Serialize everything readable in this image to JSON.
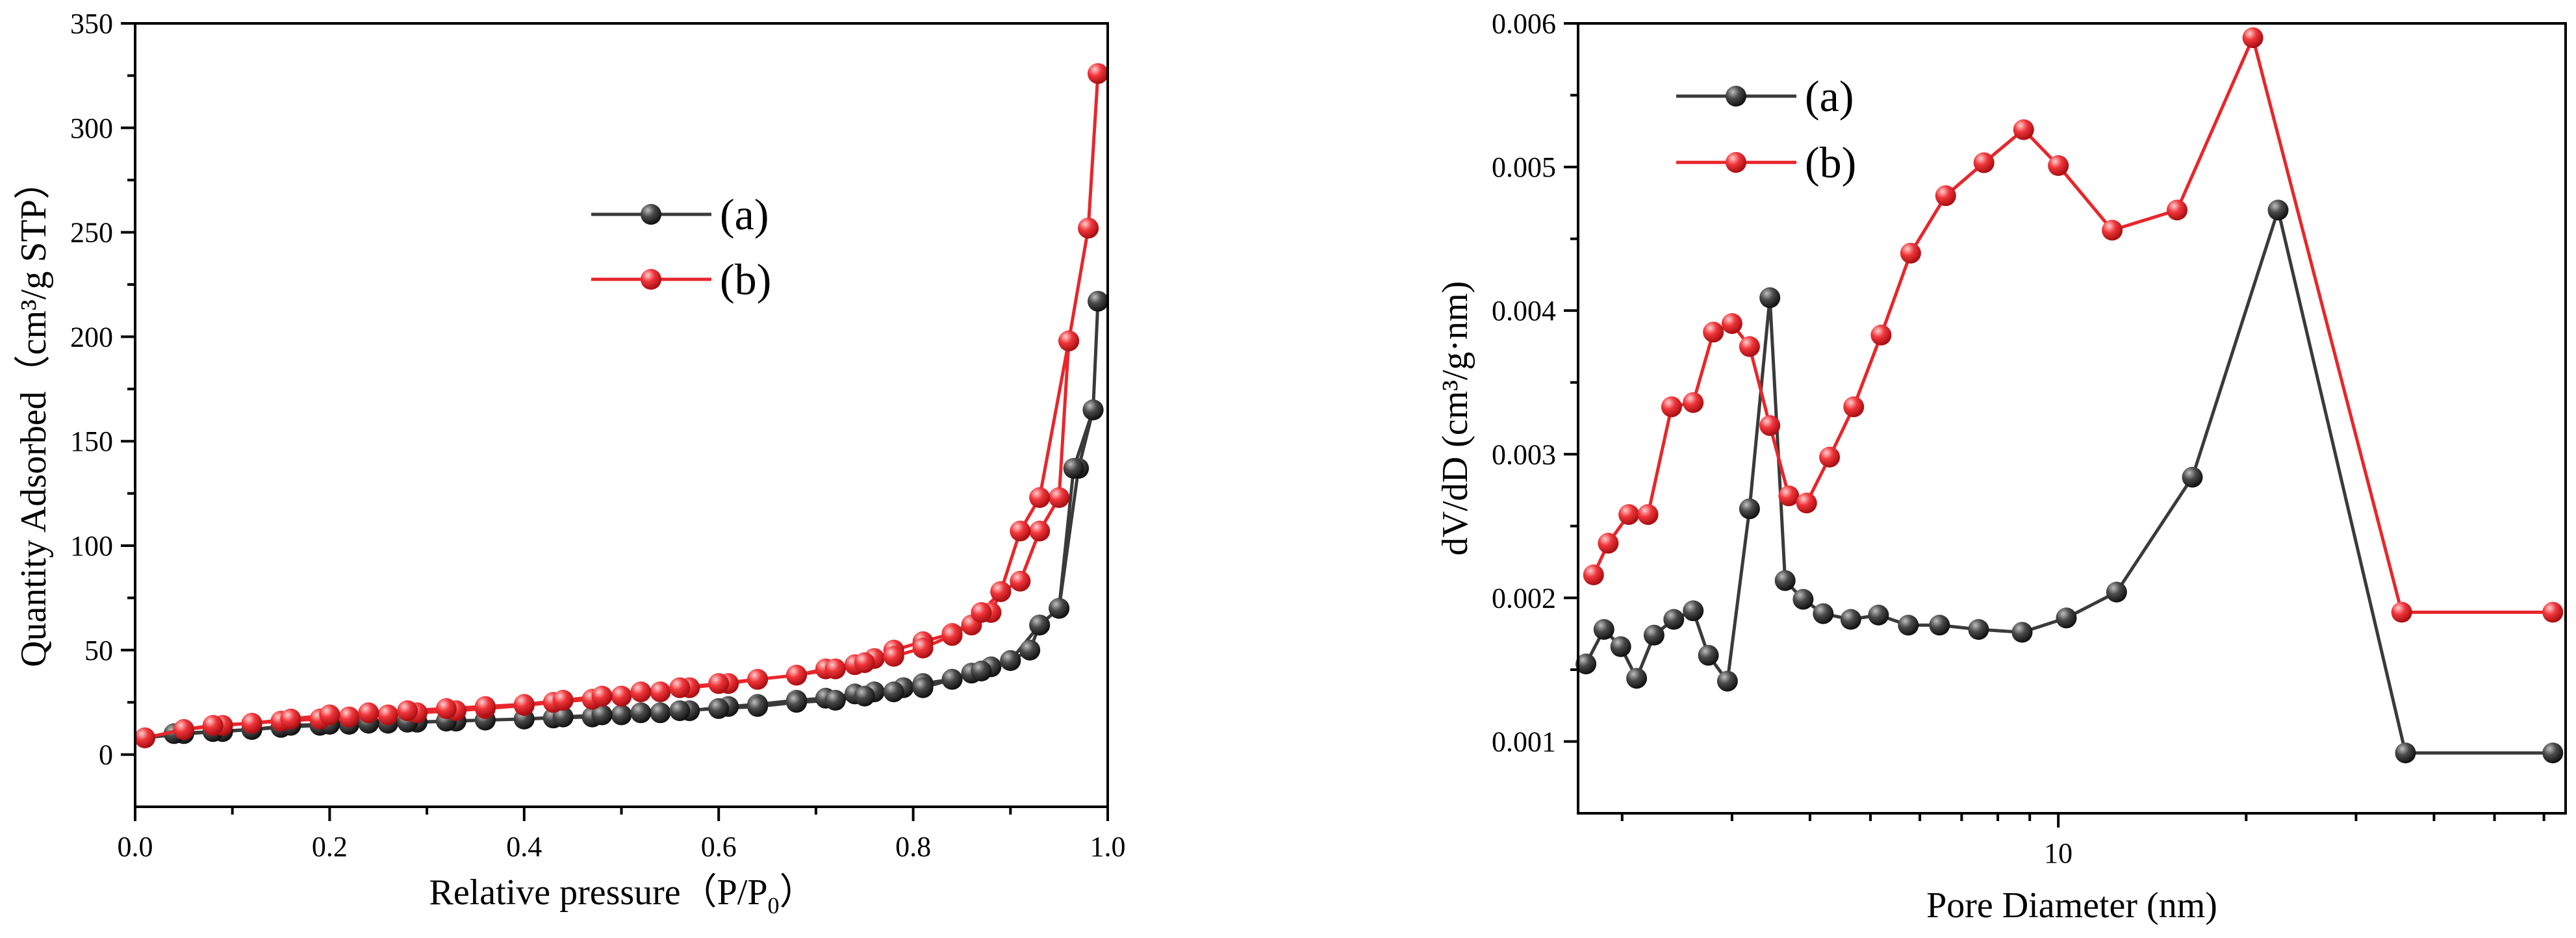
{
  "colors": {
    "series_a": "#3a3a3a",
    "series_b": "#e8262b",
    "axis": "#000000"
  },
  "chart_data": [
    {
      "type": "line",
      "title": "",
      "xlabel": "Relative pressure（P/P",
      "xlabel_sub": "0",
      "xlabel_end": "）",
      "ylabel": "Quantity Adsorbed（cm³/g STP）",
      "xlim": [
        0,
        1.0
      ],
      "ylim": [
        -25,
        350
      ],
      "xticks": [
        0.0,
        0.2,
        0.4,
        0.6,
        0.8,
        1.0
      ],
      "xtick_labels": [
        "0.0",
        "0.2",
        "0.4",
        "0.6",
        "0.8",
        "1.0"
      ],
      "yticks": [
        0,
        50,
        100,
        150,
        200,
        250,
        300,
        350
      ],
      "ytick_labels": [
        "0",
        "50",
        "100",
        "150",
        "200",
        "250",
        "300",
        "350"
      ],
      "series": [
        {
          "name": "(a)",
          "x": [
            0.01,
            0.05,
            0.09,
            0.12,
            0.15,
            0.19,
            0.22,
            0.26,
            0.29,
            0.33,
            0.36,
            0.4,
            0.43,
            0.47,
            0.5,
            0.54,
            0.57,
            0.61,
            0.64,
            0.68,
            0.71,
            0.74,
            0.76,
            0.79,
            0.81,
            0.84,
            0.86,
            0.88,
            0.9,
            0.92,
            0.93,
            0.95,
            0.97,
            0.985,
            0.99,
            0.985,
            0.965,
            0.95,
            0.93,
            0.9,
            0.87,
            0.84,
            0.81,
            0.78,
            0.75,
            0.72,
            0.68,
            0.64,
            0.6,
            0.56,
            0.52,
            0.48,
            0.44,
            0.4,
            0.36,
            0.32,
            0.28,
            0.24,
            0.2,
            0.16,
            0.12,
            0.08,
            0.04
          ],
          "values": [
            8,
            10,
            11,
            12,
            13,
            14,
            14.5,
            15,
            15.5,
            16,
            16.5,
            17,
            17.5,
            18,
            19,
            20,
            21,
            23,
            24,
            26,
            27,
            29,
            30,
            32,
            34,
            36,
            39,
            42,
            45,
            50,
            62,
            70,
            137,
            165,
            217,
            165,
            137,
            70,
            62,
            45,
            40,
            36,
            32,
            30,
            28,
            26,
            25,
            23,
            22,
            21,
            20,
            19,
            18,
            17,
            16.5,
            16,
            15.5,
            15,
            14.5,
            14,
            12,
            11,
            10
          ]
        },
        {
          "name": "(b)",
          "x": [
            0.01,
            0.05,
            0.09,
            0.12,
            0.15,
            0.19,
            0.22,
            0.26,
            0.29,
            0.33,
            0.36,
            0.4,
            0.43,
            0.47,
            0.5,
            0.54,
            0.57,
            0.61,
            0.64,
            0.68,
            0.71,
            0.74,
            0.76,
            0.78,
            0.81,
            0.84,
            0.86,
            0.88,
            0.89,
            0.91,
            0.93,
            0.95,
            0.96,
            0.98,
            0.99,
            0.98,
            0.96,
            0.93,
            0.91,
            0.89,
            0.87,
            0.84,
            0.81,
            0.78,
            0.75,
            0.72,
            0.68,
            0.64,
            0.6,
            0.56,
            0.52,
            0.48,
            0.44,
            0.4,
            0.36,
            0.32,
            0.28,
            0.24,
            0.2,
            0.16,
            0.12,
            0.08,
            0.05
          ],
          "values": [
            8,
            12,
            14,
            15,
            16,
            17,
            18,
            19,
            20,
            21,
            22,
            23.5,
            25,
            26.5,
            28,
            30,
            32,
            34,
            36,
            38,
            41,
            43,
            46,
            50,
            54,
            58,
            62,
            68,
            78,
            83,
            107,
            123,
            198,
            252,
            326,
            252,
            198,
            123,
            107,
            78,
            68,
            57,
            51,
            47,
            44,
            41,
            38,
            36,
            34,
            32,
            30,
            28,
            26,
            24,
            23,
            22,
            21,
            20,
            19,
            17,
            15,
            14,
            12
          ]
        }
      ],
      "legend": {
        "placement": "upper-middle",
        "entries": [
          "(a)",
          "(b)"
        ]
      }
    },
    {
      "type": "line",
      "title": "",
      "xlabel": "Pore Diameter (nm)",
      "ylabel": "dV/dD (cm³/g·nm)",
      "xscale": "log",
      "xlim": [
        1.7,
        65
      ],
      "ylim": [
        0.0005,
        0.006
      ],
      "xticks": [
        10
      ],
      "xtick_labels": [
        "10"
      ],
      "yticks": [
        0.001,
        0.002,
        0.003,
        0.004,
        0.005,
        0.006
      ],
      "ytick_labels": [
        "0.001",
        "0.002",
        "0.003",
        "0.004",
        "0.005",
        "0.006"
      ],
      "series": [
        {
          "name": "(a)",
          "x": [
            1.75,
            1.87,
            1.99,
            2.11,
            2.25,
            2.42,
            2.6,
            2.75,
            2.95,
            3.2,
            3.45,
            3.65,
            3.9,
            4.2,
            4.65,
            5.15,
            5.75,
            6.45,
            7.45,
            8.75,
            10.3,
            12.4,
            16.4,
            22.5,
            36,
            62
          ],
          "values": [
            0.00154,
            0.00178,
            0.00166,
            0.00144,
            0.00174,
            0.00185,
            0.00191,
            0.0016,
            0.00142,
            0.00262,
            0.00409,
            0.00212,
            0.00199,
            0.00189,
            0.00185,
            0.00188,
            0.00181,
            0.00181,
            0.00178,
            0.00176,
            0.00186,
            0.00204,
            0.00284,
            0.0047,
            0.00092,
            0.00092
          ]
        },
        {
          "name": "(b)",
          "x": [
            1.8,
            1.9,
            2.05,
            2.2,
            2.4,
            2.6,
            2.8,
            3.0,
            3.2,
            3.45,
            3.7,
            3.95,
            4.3,
            4.7,
            5.2,
            5.8,
            6.6,
            7.6,
            8.8,
            10.0,
            12.2,
            15.5,
            20.5,
            35.5,
            62
          ],
          "values": [
            0.00216,
            0.00238,
            0.00258,
            0.00258,
            0.00333,
            0.00336,
            0.00385,
            0.00391,
            0.00375,
            0.0032,
            0.00271,
            0.00266,
            0.00298,
            0.00333,
            0.00383,
            0.0044,
            0.0048,
            0.00503,
            0.00526,
            0.00501,
            0.00456,
            0.0047,
            0.0059,
            0.0019,
            0.0019
          ]
        }
      ],
      "legend": {
        "placement": "top-left",
        "entries": [
          "(a)",
          "(b)"
        ]
      }
    }
  ]
}
